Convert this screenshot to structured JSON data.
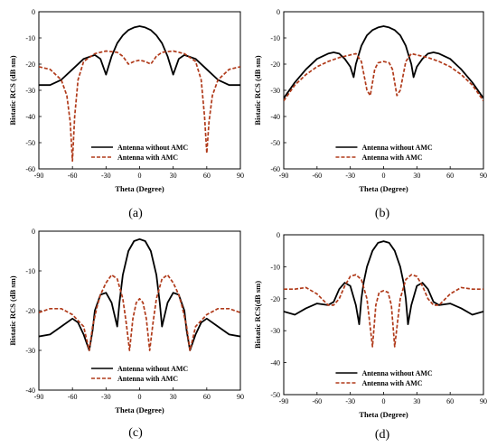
{
  "chart_data": [
    {
      "type": "line",
      "caption": "(a)",
      "xlabel": "Theta (Degree)",
      "ylabel": "Bistatic RCS (dB sm)",
      "xlim": [
        -90,
        90
      ],
      "ylim": [
        -60,
        0
      ],
      "xticks": [
        -90,
        -60,
        -30,
        0,
        30,
        60,
        90
      ],
      "yticks": [
        -60,
        -50,
        -40,
        -30,
        -20,
        -10,
        0
      ],
      "legend_position": "bottom-right",
      "series": [
        {
          "name": "Antenna without AMC",
          "color": "#000000",
          "dash": "solid",
          "x": [
            -90,
            -80,
            -70,
            -60,
            -50,
            -40,
            -35,
            -30,
            -25,
            -20,
            -15,
            -10,
            -5,
            0,
            5,
            10,
            15,
            20,
            25,
            30,
            35,
            40,
            50,
            60,
            70,
            80,
            90
          ],
          "y": [
            -28,
            -28,
            -26,
            -22,
            -18,
            -16.5,
            -18,
            -24,
            -17,
            -12,
            -9,
            -7,
            -6,
            -5.5,
            -6,
            -7,
            -9,
            -12,
            -17,
            -24,
            -18,
            -16.5,
            -18,
            -22,
            -26,
            -28,
            -28
          ]
        },
        {
          "name": "Antenna with AMC",
          "color": "#b03a1a",
          "dash": "dashed",
          "x": [
            -90,
            -80,
            -70,
            -65,
            -62,
            -60,
            -58,
            -55,
            -50,
            -40,
            -30,
            -20,
            -15,
            -10,
            -5,
            0,
            5,
            10,
            15,
            20,
            30,
            40,
            50,
            55,
            58,
            60,
            62,
            65,
            70,
            80,
            90
          ],
          "y": [
            -21,
            -22,
            -26,
            -32,
            -42,
            -57,
            -40,
            -26,
            -19,
            -16,
            -15,
            -15.5,
            -17,
            -20,
            -19,
            -18.5,
            -19,
            -20,
            -17,
            -15.5,
            -15,
            -16,
            -19,
            -26,
            -40,
            -54,
            -42,
            -32,
            -26,
            -22,
            -21
          ]
        }
      ]
    },
    {
      "type": "line",
      "caption": "(b)",
      "xlabel": "Theta (Degree)",
      "ylabel": "Bistatic RCS (dB sm)",
      "xlim": [
        -90,
        90
      ],
      "ylim": [
        -60,
        0
      ],
      "xticks": [
        -90,
        -60,
        -30,
        0,
        30,
        60,
        90
      ],
      "yticks": [
        -60,
        -50,
        -40,
        -30,
        -20,
        -10,
        0
      ],
      "legend_position": "bottom-right",
      "series": [
        {
          "name": "Antenna without AMC",
          "color": "#000000",
          "dash": "solid",
          "x": [
            -90,
            -80,
            -70,
            -60,
            -50,
            -45,
            -40,
            -35,
            -30,
            -27,
            -25,
            -20,
            -15,
            -10,
            -5,
            0,
            5,
            10,
            15,
            20,
            25,
            27,
            30,
            35,
            40,
            45,
            50,
            60,
            70,
            80,
            90
          ],
          "y": [
            -33,
            -27,
            -22,
            -18,
            -16,
            -15.5,
            -16,
            -18,
            -21,
            -25,
            -20,
            -13,
            -9,
            -7,
            -6,
            -5.5,
            -6,
            -7,
            -9,
            -13,
            -20,
            -25,
            -21,
            -18,
            -16,
            -15.5,
            -16,
            -18,
            -22,
            -27,
            -33
          ]
        },
        {
          "name": "Antenna with AMC",
          "color": "#b03a1a",
          "dash": "dashed",
          "x": [
            -90,
            -80,
            -70,
            -60,
            -50,
            -40,
            -30,
            -25,
            -20,
            -15,
            -12,
            -8,
            -5,
            0,
            5,
            8,
            12,
            15,
            20,
            25,
            30,
            40,
            50,
            60,
            70,
            80,
            90
          ],
          "y": [
            -34,
            -28,
            -24,
            -21,
            -19,
            -17.5,
            -16.5,
            -16,
            -19,
            -30,
            -32,
            -22,
            -19.5,
            -19,
            -19.5,
            -22,
            -32,
            -30,
            -19,
            -16,
            -16.5,
            -17.5,
            -19,
            -21,
            -24,
            -28,
            -34
          ]
        }
      ]
    },
    {
      "type": "line",
      "caption": "(c)",
      "xlabel": "Theta (Degree)",
      "ylabel": "Bistatic RCS (dB sm)",
      "xlim": [
        -90,
        90
      ],
      "ylim": [
        -40,
        0
      ],
      "xticks": [
        -90,
        -60,
        -30,
        0,
        30,
        60,
        90
      ],
      "yticks": [
        -40,
        -30,
        -20,
        -10,
        0
      ],
      "legend_position": "bottom-right",
      "series": [
        {
          "name": "Antenna without AMC",
          "color": "#000000",
          "dash": "solid",
          "x": [
            -90,
            -80,
            -70,
            -60,
            -55,
            -50,
            -45,
            -42,
            -40,
            -35,
            -30,
            -25,
            -20,
            -18,
            -15,
            -10,
            -5,
            0,
            5,
            10,
            15,
            18,
            20,
            25,
            30,
            35,
            40,
            42,
            45,
            50,
            55,
            60,
            70,
            80,
            90
          ],
          "y": [
            -26.5,
            -26,
            -24,
            -22,
            -23,
            -26,
            -30,
            -25,
            -20,
            -16,
            -15.5,
            -18,
            -24,
            -18,
            -11,
            -5,
            -2.5,
            -2,
            -2.5,
            -5,
            -11,
            -18,
            -24,
            -18,
            -15.5,
            -16,
            -20,
            -25,
            -30,
            -26,
            -23,
            -22,
            -24,
            -26,
            -26.5
          ]
        },
        {
          "name": "Antenna with AMC",
          "color": "#b03a1a",
          "dash": "dashed",
          "x": [
            -90,
            -80,
            -70,
            -60,
            -50,
            -45,
            -42,
            -38,
            -35,
            -30,
            -25,
            -20,
            -15,
            -12,
            -9,
            -6,
            -3,
            0,
            3,
            6,
            9,
            12,
            15,
            20,
            25,
            30,
            35,
            38,
            42,
            45,
            50,
            60,
            70,
            80,
            90
          ],
          "y": [
            -20.5,
            -19.5,
            -19.5,
            -21,
            -24,
            -30,
            -24,
            -19,
            -16,
            -13,
            -11,
            -12,
            -17,
            -23,
            -30,
            -22,
            -18,
            -17,
            -18,
            -22,
            -30,
            -23,
            -17,
            -12,
            -11,
            -13,
            -16,
            -19,
            -24,
            -30,
            -24,
            -21,
            -19.5,
            -19.5,
            -20.5
          ]
        }
      ]
    },
    {
      "type": "line",
      "caption": "(d)",
      "xlabel": "Theta (Degree)",
      "ylabel": "Bistatic RCS(dB sm)",
      "xlim": [
        -90,
        90
      ],
      "ylim": [
        -50,
        0
      ],
      "xticks": [
        -90,
        -60,
        -30,
        0,
        30,
        60,
        90
      ],
      "yticks": [
        -50,
        -40,
        -30,
        -20,
        -10,
        0
      ],
      "legend_position": "bottom-right",
      "series": [
        {
          "name": "Antenna without AMC",
          "color": "#000000",
          "dash": "solid",
          "x": [
            -90,
            -80,
            -70,
            -60,
            -50,
            -45,
            -40,
            -35,
            -30,
            -25,
            -22,
            -20,
            -18,
            -15,
            -10,
            -5,
            0,
            5,
            10,
            15,
            18,
            20,
            22,
            25,
            30,
            35,
            40,
            45,
            50,
            60,
            70,
            80,
            90
          ],
          "y": [
            -24,
            -25,
            -23,
            -21.5,
            -22,
            -21,
            -17,
            -15,
            -16,
            -22,
            -28,
            -20,
            -15,
            -10,
            -5,
            -2.5,
            -2,
            -2.5,
            -5,
            -10,
            -15,
            -20,
            -28,
            -22,
            -16,
            -15,
            -17,
            -21,
            -22,
            -21.5,
            -23,
            -25,
            -24
          ]
        },
        {
          "name": "Antenna with AMC",
          "color": "#b03a1a",
          "dash": "dashed",
          "x": [
            -90,
            -80,
            -70,
            -60,
            -50,
            -45,
            -40,
            -35,
            -30,
            -25,
            -20,
            -15,
            -10,
            -7,
            -4,
            0,
            4,
            7,
            10,
            15,
            20,
            25,
            30,
            35,
            40,
            45,
            50,
            60,
            70,
            80,
            90
          ],
          "y": [
            -17,
            -17,
            -16.5,
            -18.5,
            -22,
            -22,
            -20,
            -16,
            -13,
            -12.5,
            -14,
            -20,
            -35,
            -22,
            -18,
            -17.5,
            -18,
            -22,
            -35,
            -20,
            -14,
            -12.5,
            -13,
            -16,
            -20,
            -22,
            -22,
            -18.5,
            -16.5,
            -17,
            -17
          ]
        }
      ]
    }
  ]
}
